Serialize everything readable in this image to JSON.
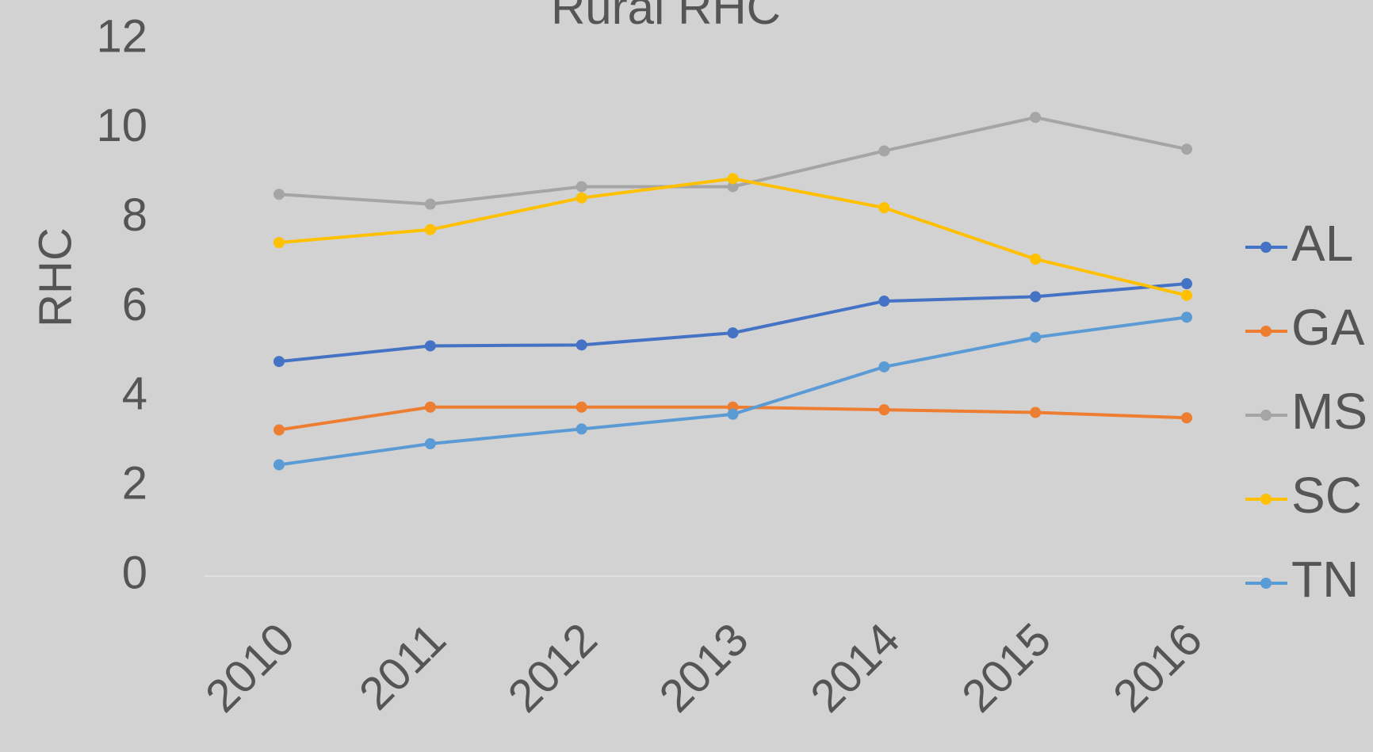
{
  "chart_data": {
    "type": "line",
    "title": "Rural RHC",
    "y_label": "RHC",
    "categories": [
      "2010",
      "2011",
      "2012",
      "2013",
      "2014",
      "2015",
      "2016"
    ],
    "series": [
      {
        "name": "AL",
        "color": "#4472c4",
        "values": [
          4.8,
          5.15,
          5.17,
          5.44,
          6.15,
          6.25,
          6.54
        ]
      },
      {
        "name": "GA",
        "color": "#ed7d31",
        "values": [
          3.27,
          3.78,
          3.78,
          3.78,
          3.72,
          3.66,
          3.54
        ]
      },
      {
        "name": "MS",
        "color": "#a5a5a5",
        "values": [
          8.54,
          8.32,
          8.71,
          8.71,
          9.51,
          10.26,
          9.55
        ]
      },
      {
        "name": "SC",
        "color": "#ffc000",
        "values": [
          7.46,
          7.75,
          8.46,
          8.89,
          8.24,
          7.09,
          6.28
        ]
      },
      {
        "name": "TN",
        "color": "#5b9bd5",
        "values": [
          2.49,
          2.96,
          3.29,
          3.62,
          4.68,
          5.34,
          5.79
        ]
      }
    ],
    "ylim": [
      0,
      12
    ],
    "yticks": [
      0,
      2,
      4,
      6,
      8,
      10,
      12
    ],
    "grid": false,
    "legend": "right"
  }
}
